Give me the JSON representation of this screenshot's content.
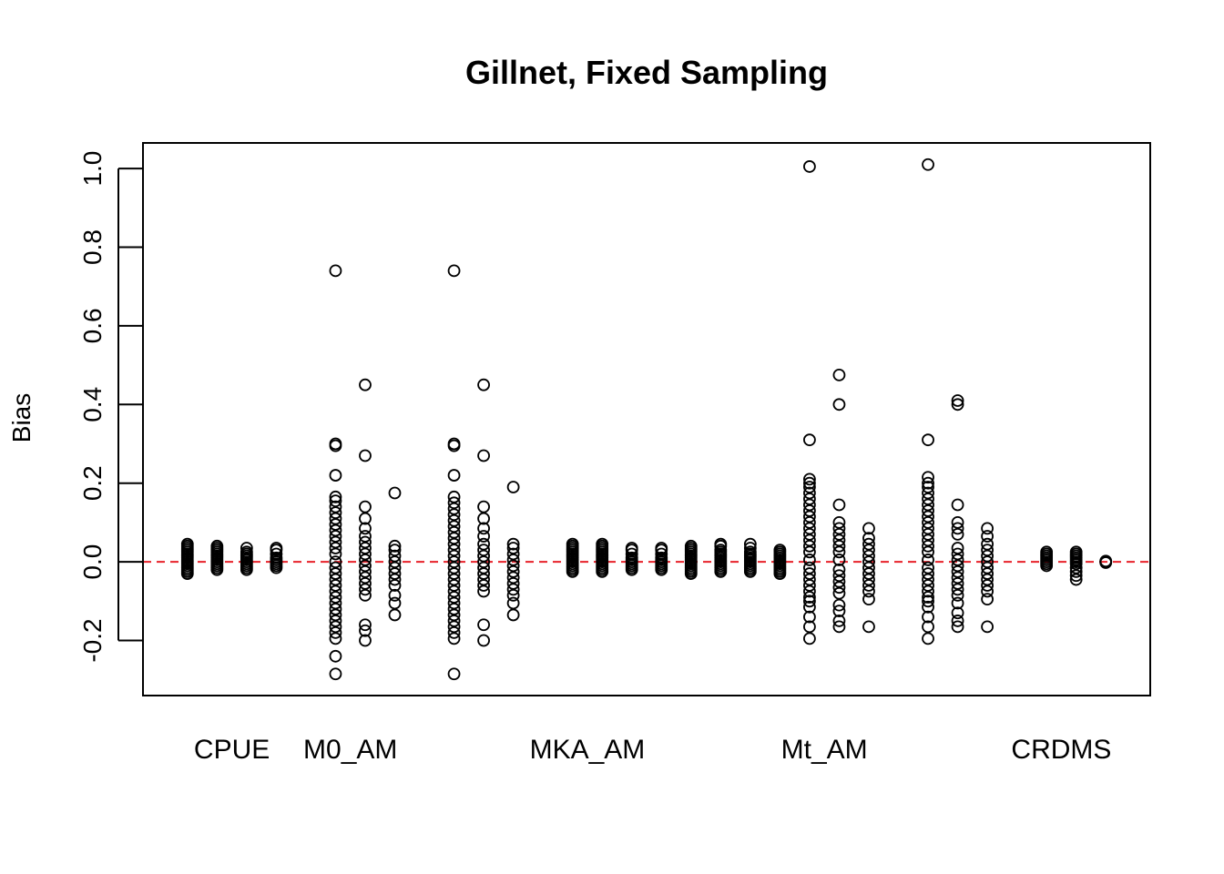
{
  "chart_data": {
    "type": "scatter",
    "title": "Gillnet, Fixed Sampling",
    "xlabel": "",
    "ylabel": "Bias",
    "ylim": [
      -0.34,
      1.065
    ],
    "yticks": [
      "-0.2",
      "0.0",
      "0.2",
      "0.4",
      "0.6",
      "0.8",
      "1.0"
    ],
    "yticks_values": [
      -0.2,
      0.0,
      0.2,
      0.4,
      0.6,
      0.8,
      1.0
    ],
    "x_range": [
      0.5,
      17.5
    ],
    "category_labels": [
      {
        "label": "CPUE",
        "x": 2.0
      },
      {
        "label": "M0_AM",
        "x": 4.0
      },
      {
        "label": "MKA_AM",
        "x": 8.0
      },
      {
        "label": "Mt_AM",
        "x": 12.0
      },
      {
        "label": "CRDMS",
        "x": 16.0
      }
    ],
    "reference_line": {
      "y": 0.0,
      "color": "#e8222a",
      "style": "dashed"
    },
    "grid": false,
    "legend": "none",
    "marker": "open-circle",
    "columns": [
      {
        "x": 1.25,
        "values": [
          -0.03,
          -0.025,
          -0.02,
          -0.015,
          -0.01,
          -0.005,
          0.0,
          0.005,
          0.01,
          0.015,
          0.02,
          0.025,
          0.03,
          0.035,
          0.04,
          0.045
        ]
      },
      {
        "x": 1.75,
        "values": [
          -0.02,
          -0.015,
          -0.01,
          -0.005,
          0.0,
          0.005,
          0.01,
          0.015,
          0.02,
          0.025,
          0.03,
          0.035,
          0.04
        ]
      },
      {
        "x": 2.25,
        "values": [
          -0.02,
          -0.015,
          -0.01,
          -0.005,
          0.0,
          0.005,
          0.01,
          0.015,
          0.02,
          0.025,
          0.035
        ]
      },
      {
        "x": 2.75,
        "values": [
          -0.015,
          -0.01,
          -0.005,
          0.0,
          0.005,
          0.01,
          0.02,
          0.03,
          0.035
        ]
      },
      {
        "x": 3.75,
        "values": [
          -0.285,
          -0.24,
          -0.195,
          -0.18,
          -0.165,
          -0.15,
          -0.135,
          -0.12,
          -0.105,
          -0.09,
          -0.075,
          -0.06,
          -0.045,
          -0.03,
          -0.015,
          0.0,
          0.02,
          0.035,
          0.05,
          0.065,
          0.08,
          0.095,
          0.11,
          0.125,
          0.14,
          0.155,
          0.165,
          0.22,
          0.295,
          0.3,
          0.74
        ]
      },
      {
        "x": 4.25,
        "values": [
          -0.2,
          -0.175,
          -0.16,
          -0.085,
          -0.07,
          -0.055,
          -0.04,
          -0.025,
          -0.01,
          0.005,
          0.02,
          0.035,
          0.05,
          0.065,
          0.085,
          0.11,
          0.14,
          0.27,
          0.45
        ]
      },
      {
        "x": 4.75,
        "values": [
          -0.135,
          -0.105,
          -0.085,
          -0.06,
          -0.045,
          -0.03,
          -0.015,
          0.0,
          0.015,
          0.03,
          0.04,
          0.175
        ]
      },
      {
        "x": 5.75,
        "values": [
          -0.285,
          -0.195,
          -0.18,
          -0.165,
          -0.15,
          -0.135,
          -0.12,
          -0.105,
          -0.09,
          -0.075,
          -0.06,
          -0.045,
          -0.03,
          -0.015,
          0.0,
          0.015,
          0.03,
          0.045,
          0.06,
          0.075,
          0.09,
          0.105,
          0.12,
          0.135,
          0.15,
          0.165,
          0.22,
          0.295,
          0.3,
          0.74
        ]
      },
      {
        "x": 6.25,
        "values": [
          -0.2,
          -0.16,
          -0.075,
          -0.06,
          -0.045,
          -0.03,
          -0.015,
          0.0,
          0.015,
          0.03,
          0.045,
          0.065,
          0.085,
          0.11,
          0.14,
          0.27,
          0.45
        ]
      },
      {
        "x": 6.75,
        "values": [
          -0.135,
          -0.105,
          -0.085,
          -0.07,
          -0.055,
          -0.04,
          -0.025,
          -0.01,
          0.005,
          0.02,
          0.035,
          0.045,
          0.19
        ]
      },
      {
        "x": 7.75,
        "values": [
          -0.025,
          -0.02,
          -0.015,
          -0.01,
          -0.005,
          0.0,
          0.005,
          0.01,
          0.015,
          0.02,
          0.025,
          0.03,
          0.035,
          0.04,
          0.045
        ]
      },
      {
        "x": 8.25,
        "values": [
          -0.025,
          -0.02,
          -0.015,
          -0.01,
          -0.005,
          0.0,
          0.005,
          0.01,
          0.015,
          0.02,
          0.025,
          0.03,
          0.035,
          0.04,
          0.045
        ]
      },
      {
        "x": 8.75,
        "values": [
          -0.02,
          -0.015,
          -0.01,
          -0.005,
          0.0,
          0.005,
          0.01,
          0.02,
          0.03,
          0.035
        ]
      },
      {
        "x": 9.25,
        "values": [
          -0.02,
          -0.015,
          -0.01,
          -0.005,
          0.0,
          0.005,
          0.01,
          0.02,
          0.03,
          0.035
        ]
      },
      {
        "x": 9.75,
        "values": [
          -0.03,
          -0.025,
          -0.02,
          -0.015,
          -0.01,
          -0.005,
          0.0,
          0.005,
          0.01,
          0.015,
          0.02,
          0.025,
          0.03,
          0.035,
          0.04
        ]
      },
      {
        "x": 10.25,
        "values": [
          -0.025,
          -0.02,
          -0.015,
          -0.01,
          -0.005,
          0.0,
          0.005,
          0.01,
          0.015,
          0.02,
          0.025,
          0.03,
          0.04,
          0.045
        ]
      },
      {
        "x": 10.75,
        "values": [
          -0.025,
          -0.02,
          -0.015,
          -0.01,
          -0.005,
          0.0,
          0.005,
          0.01,
          0.015,
          0.02,
          0.025,
          0.035,
          0.045
        ]
      },
      {
        "x": 11.25,
        "values": [
          -0.03,
          -0.025,
          -0.02,
          -0.015,
          -0.01,
          -0.005,
          0.0,
          0.005,
          0.01,
          0.015,
          0.02,
          0.025,
          0.03
        ]
      },
      {
        "x": 11.75,
        "values": [
          -0.195,
          -0.165,
          -0.14,
          -0.115,
          -0.1,
          -0.09,
          -0.075,
          -0.06,
          -0.045,
          -0.03,
          -0.015,
          0.005,
          0.025,
          0.04,
          0.055,
          0.07,
          0.085,
          0.1,
          0.115,
          0.13,
          0.145,
          0.16,
          0.175,
          0.19,
          0.2,
          0.21,
          0.31,
          1.005
        ]
      },
      {
        "x": 12.25,
        "values": [
          -0.165,
          -0.15,
          -0.125,
          -0.11,
          -0.08,
          -0.065,
          -0.05,
          -0.035,
          -0.02,
          0.005,
          0.025,
          0.04,
          0.055,
          0.07,
          0.085,
          0.1,
          0.145,
          0.4,
          0.475
        ]
      },
      {
        "x": 12.75,
        "values": [
          -0.165,
          -0.095,
          -0.075,
          -0.06,
          -0.045,
          -0.03,
          -0.015,
          0.0,
          0.015,
          0.03,
          0.045,
          0.06,
          0.085
        ]
      },
      {
        "x": 13.75,
        "values": [
          -0.195,
          -0.165,
          -0.14,
          -0.115,
          -0.1,
          -0.09,
          -0.075,
          -0.06,
          -0.045,
          -0.03,
          -0.015,
          0.005,
          0.025,
          0.04,
          0.055,
          0.07,
          0.085,
          0.1,
          0.115,
          0.13,
          0.145,
          0.16,
          0.175,
          0.19,
          0.2,
          0.215,
          0.31,
          1.01
        ]
      },
      {
        "x": 14.25,
        "values": [
          -0.165,
          -0.15,
          -0.13,
          -0.105,
          -0.085,
          -0.07,
          -0.055,
          -0.04,
          -0.025,
          -0.01,
          0.005,
          0.02,
          0.035,
          0.07,
          0.085,
          0.1,
          0.145,
          0.4,
          0.41
        ]
      },
      {
        "x": 14.75,
        "values": [
          -0.165,
          -0.095,
          -0.075,
          -0.06,
          -0.045,
          -0.03,
          -0.015,
          0.0,
          0.015,
          0.03,
          0.045,
          0.065,
          0.085
        ]
      },
      {
        "x": 15.75,
        "values": [
          -0.01,
          -0.005,
          0.0,
          0.005,
          0.01,
          0.015,
          0.02,
          0.025
        ]
      },
      {
        "x": 16.25,
        "values": [
          -0.045,
          -0.035,
          -0.025,
          -0.015,
          -0.005,
          0.0,
          0.005,
          0.01,
          0.015,
          0.02,
          0.025
        ]
      },
      {
        "x": 16.75,
        "values": [
          -0.002,
          0.0,
          0.002
        ]
      }
    ]
  }
}
